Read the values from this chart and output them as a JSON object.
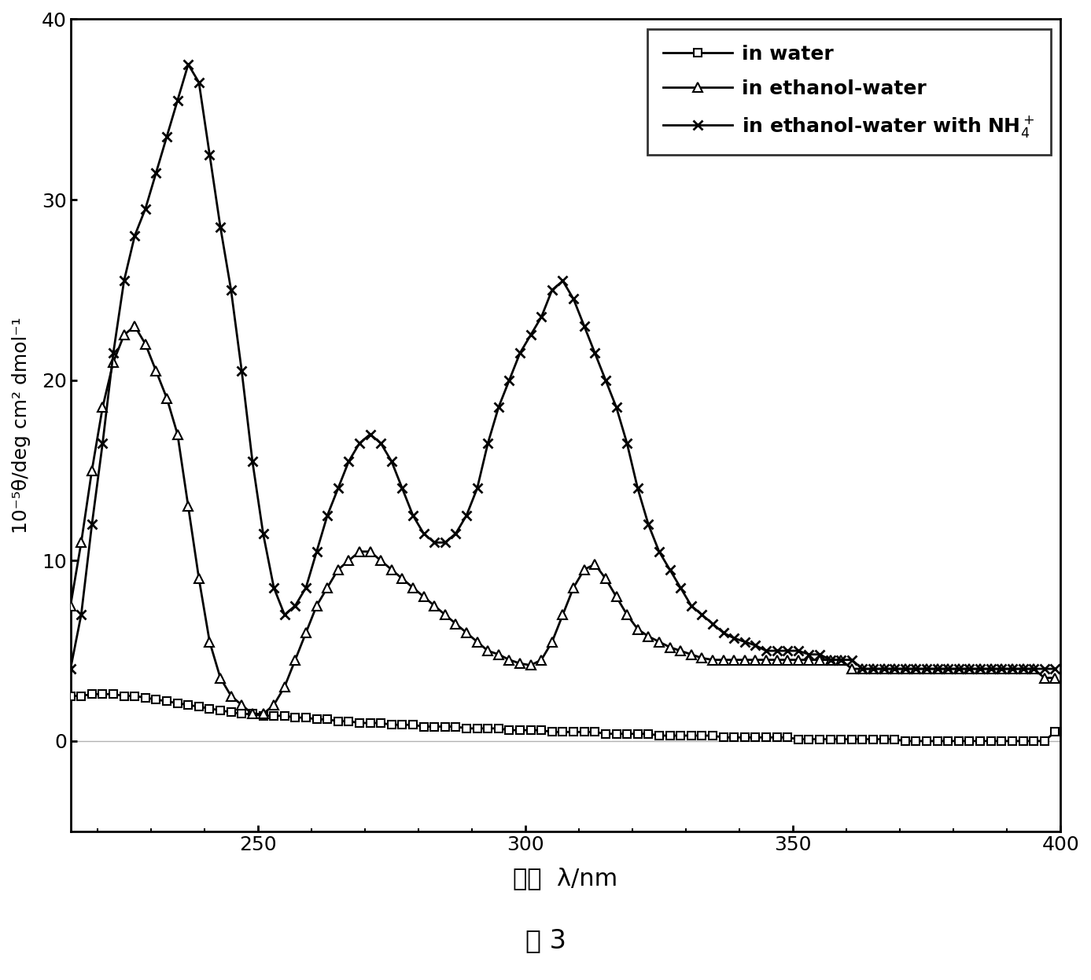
{
  "xlabel": "波长  λ/nm",
  "ylabel": "10⁻⁵θ/deg cm² dmol⁻¹",
  "caption": "图 3",
  "xlim": [
    215,
    400
  ],
  "ylim": [
    -5,
    40
  ],
  "xticks": [
    250,
    300,
    350,
    400
  ],
  "yticks": [
    0,
    10,
    20,
    30,
    40
  ],
  "legend_labels": [
    "in water",
    "in ethanol-water",
    "in ethanol-water with NH₄⁺"
  ],
  "bg_color": "#ffffff",
  "line_color": "#000000",
  "series_water": {
    "x": [
      215,
      217,
      219,
      221,
      223,
      225,
      227,
      229,
      231,
      233,
      235,
      237,
      239,
      241,
      243,
      245,
      247,
      249,
      251,
      253,
      255,
      257,
      259,
      261,
      263,
      265,
      267,
      269,
      271,
      273,
      275,
      277,
      279,
      281,
      283,
      285,
      287,
      289,
      291,
      293,
      295,
      297,
      299,
      301,
      303,
      305,
      307,
      309,
      311,
      313,
      315,
      317,
      319,
      321,
      323,
      325,
      327,
      329,
      331,
      333,
      335,
      337,
      339,
      341,
      343,
      345,
      347,
      349,
      351,
      353,
      355,
      357,
      359,
      361,
      363,
      365,
      367,
      369,
      371,
      373,
      375,
      377,
      379,
      381,
      383,
      385,
      387,
      389,
      391,
      393,
      395,
      397,
      399
    ],
    "y": [
      2.5,
      2.5,
      2.6,
      2.6,
      2.6,
      2.5,
      2.5,
      2.4,
      2.3,
      2.2,
      2.1,
      2.0,
      1.9,
      1.8,
      1.7,
      1.6,
      1.5,
      1.5,
      1.4,
      1.4,
      1.4,
      1.3,
      1.3,
      1.2,
      1.2,
      1.1,
      1.1,
      1.0,
      1.0,
      1.0,
      0.9,
      0.9,
      0.9,
      0.8,
      0.8,
      0.8,
      0.8,
      0.7,
      0.7,
      0.7,
      0.7,
      0.6,
      0.6,
      0.6,
      0.6,
      0.5,
      0.5,
      0.5,
      0.5,
      0.5,
      0.4,
      0.4,
      0.4,
      0.4,
      0.4,
      0.3,
      0.3,
      0.3,
      0.3,
      0.3,
      0.3,
      0.2,
      0.2,
      0.2,
      0.2,
      0.2,
      0.2,
      0.2,
      0.1,
      0.1,
      0.1,
      0.1,
      0.1,
      0.1,
      0.1,
      0.1,
      0.1,
      0.1,
      0.0,
      0.0,
      0.0,
      0.0,
      0.0,
      0.0,
      0.0,
      0.0,
      0.0,
      0.0,
      0.0,
      0.0,
      0.0,
      0.0,
      0.5
    ]
  },
  "series_ethanol": {
    "x": [
      215,
      217,
      219,
      221,
      223,
      225,
      227,
      229,
      231,
      233,
      235,
      237,
      239,
      241,
      243,
      245,
      247,
      249,
      251,
      253,
      255,
      257,
      259,
      261,
      263,
      265,
      267,
      269,
      271,
      273,
      275,
      277,
      279,
      281,
      283,
      285,
      287,
      289,
      291,
      293,
      295,
      297,
      299,
      301,
      303,
      305,
      307,
      309,
      311,
      313,
      315,
      317,
      319,
      321,
      323,
      325,
      327,
      329,
      331,
      333,
      335,
      337,
      339,
      341,
      343,
      345,
      347,
      349,
      351,
      353,
      355,
      357,
      359,
      361,
      363,
      365,
      367,
      369,
      371,
      373,
      375,
      377,
      379,
      381,
      383,
      385,
      387,
      389,
      391,
      393,
      395,
      397,
      399
    ],
    "y": [
      7.5,
      11.0,
      15.0,
      18.5,
      21.0,
      22.5,
      23.0,
      22.0,
      20.5,
      19.0,
      17.0,
      13.0,
      9.0,
      5.5,
      3.5,
      2.5,
      2.0,
      1.5,
      1.5,
      2.0,
      3.0,
      4.5,
      6.0,
      7.5,
      8.5,
      9.5,
      10.0,
      10.5,
      10.5,
      10.0,
      9.5,
      9.0,
      8.5,
      8.0,
      7.5,
      7.0,
      6.5,
      6.0,
      5.5,
      5.0,
      4.8,
      4.5,
      4.3,
      4.2,
      4.5,
      5.5,
      7.0,
      8.5,
      9.5,
      9.8,
      9.0,
      8.0,
      7.0,
      6.2,
      5.8,
      5.5,
      5.2,
      5.0,
      4.8,
      4.6,
      4.5,
      4.5,
      4.5,
      4.5,
      4.5,
      4.5,
      4.5,
      4.5,
      4.5,
      4.5,
      4.5,
      4.5,
      4.5,
      4.0,
      4.0,
      4.0,
      4.0,
      4.0,
      4.0,
      4.0,
      4.0,
      4.0,
      4.0,
      4.0,
      4.0,
      4.0,
      4.0,
      4.0,
      4.0,
      4.0,
      4.0,
      3.5,
      3.5
    ]
  },
  "series_nh4": {
    "x": [
      215,
      217,
      219,
      221,
      223,
      225,
      227,
      229,
      231,
      233,
      235,
      237,
      239,
      241,
      243,
      245,
      247,
      249,
      251,
      253,
      255,
      257,
      259,
      261,
      263,
      265,
      267,
      269,
      271,
      273,
      275,
      277,
      279,
      281,
      283,
      285,
      287,
      289,
      291,
      293,
      295,
      297,
      299,
      301,
      303,
      305,
      307,
      309,
      311,
      313,
      315,
      317,
      319,
      321,
      323,
      325,
      327,
      329,
      331,
      333,
      335,
      337,
      339,
      341,
      343,
      345,
      347,
      349,
      351,
      353,
      355,
      357,
      359,
      361,
      363,
      365,
      367,
      369,
      371,
      373,
      375,
      377,
      379,
      381,
      383,
      385,
      387,
      389,
      391,
      393,
      395,
      397,
      399
    ],
    "y": [
      4.0,
      7.0,
      12.0,
      16.5,
      21.5,
      25.5,
      28.0,
      29.5,
      31.5,
      33.5,
      35.5,
      37.5,
      36.5,
      32.5,
      28.5,
      25.0,
      20.5,
      15.5,
      11.5,
      8.5,
      7.0,
      7.5,
      8.5,
      10.5,
      12.5,
      14.0,
      15.5,
      16.5,
      17.0,
      16.5,
      15.5,
      14.0,
      12.5,
      11.5,
      11.0,
      11.0,
      11.5,
      12.5,
      14.0,
      16.5,
      18.5,
      20.0,
      21.5,
      22.5,
      23.5,
      25.0,
      25.5,
      24.5,
      23.0,
      21.5,
      20.0,
      18.5,
      16.5,
      14.0,
      12.0,
      10.5,
      9.5,
      8.5,
      7.5,
      7.0,
      6.5,
      6.0,
      5.7,
      5.5,
      5.3,
      5.0,
      5.0,
      5.0,
      5.0,
      4.8,
      4.8,
      4.5,
      4.5,
      4.5,
      4.0,
      4.0,
      4.0,
      4.0,
      4.0,
      4.0,
      4.0,
      4.0,
      4.0,
      4.0,
      4.0,
      4.0,
      4.0,
      4.0,
      4.0,
      4.0,
      4.0,
      4.0,
      4.0
    ]
  }
}
